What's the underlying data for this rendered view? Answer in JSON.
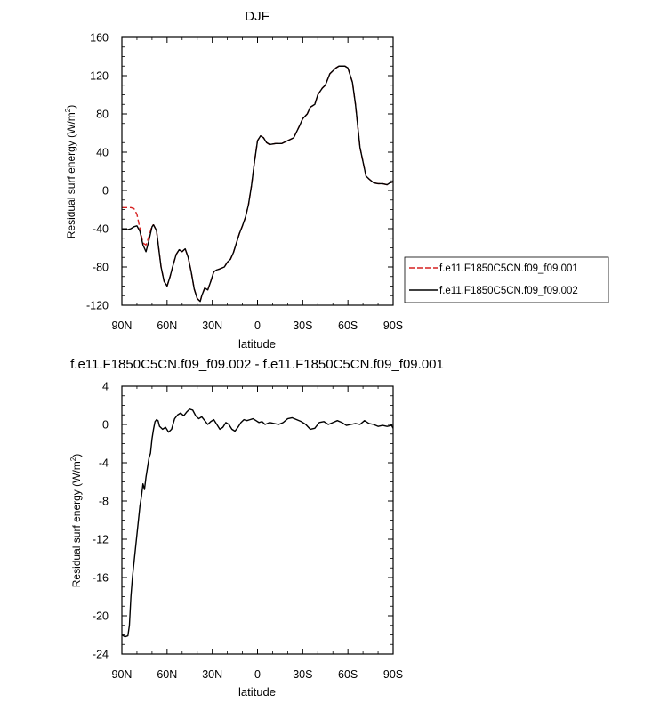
{
  "chart_data": [
    {
      "type": "line",
      "title": "DJF",
      "xlabel": "latitude",
      "ylabel_main": "Residual surf energy (W/m",
      "ylabel_sup": "2",
      "ylabel_close": ")",
      "xlim": [
        -90,
        90
      ],
      "ylim": [
        -120,
        160
      ],
      "x_ticks": [
        -90,
        -60,
        -30,
        0,
        30,
        60,
        90
      ],
      "x_tick_labels": [
        "90N",
        "60N",
        "30N",
        "0",
        "30S",
        "60S",
        "90S"
      ],
      "y_ticks": [
        -120,
        -80,
        -40,
        0,
        40,
        80,
        120,
        160
      ],
      "y_tick_labels": [
        "-120",
        "-80",
        "-40",
        "0",
        "40",
        "80",
        "120",
        "160"
      ],
      "legend_position": "right",
      "series": [
        {
          "name": "f.e11.F1850C5CN.f09_f09.001",
          "color": "#d62020",
          "dash": "dashed",
          "x": [
            -90,
            -86,
            -84,
            -82,
            -80,
            -78,
            -76,
            -74,
            -72,
            -70,
            -69,
            -67,
            -66,
            -64,
            -62,
            -60,
            -58,
            -56,
            -54,
            -52,
            -50,
            -48,
            -46,
            -44,
            -42,
            -40,
            -38,
            -37,
            -35,
            -33,
            -31,
            -29,
            -27,
            -25,
            -22,
            -20,
            -18,
            -16,
            -14,
            -12,
            -10,
            -8,
            -6,
            -4,
            -2,
            0,
            2,
            4,
            6,
            8,
            12,
            16,
            20,
            24,
            28,
            30,
            33,
            35,
            38,
            40,
            43,
            45,
            48,
            50,
            52,
            54,
            56,
            58,
            60,
            63,
            65,
            68,
            70,
            72,
            74,
            77,
            80,
            83,
            86,
            88,
            90
          ],
          "y": [
            -18,
            -18,
            -18,
            -19,
            -25,
            -40,
            -55,
            -57,
            -48,
            -37,
            -36,
            -42,
            -55,
            -80,
            -95,
            -100,
            -90,
            -78,
            -67,
            -62,
            -64,
            -61,
            -70,
            -85,
            -103,
            -113,
            -116,
            -110,
            -102,
            -104,
            -95,
            -85,
            -83,
            -82,
            -80,
            -75,
            -72,
            -65,
            -55,
            -45,
            -37,
            -28,
            -15,
            5,
            30,
            52,
            57,
            55,
            50,
            48,
            49,
            49,
            52,
            55,
            68,
            75,
            80,
            87,
            90,
            100,
            107,
            110,
            122,
            125,
            128,
            130,
            130,
            130,
            128,
            113,
            90,
            45,
            30,
            15,
            12,
            8,
            7,
            7,
            6,
            8,
            9
          ]
        },
        {
          "name": "f.e11.F1850C5CN.f09_f09.002",
          "color": "#000000",
          "dash": "solid",
          "x": [
            -90,
            -86,
            -84,
            -82,
            -80,
            -78,
            -76,
            -74,
            -72,
            -70,
            -69,
            -67,
            -66,
            -64,
            -62,
            -60,
            -58,
            -56,
            -54,
            -52,
            -50,
            -48,
            -46,
            -44,
            -42,
            -40,
            -38,
            -37,
            -35,
            -33,
            -31,
            -29,
            -27,
            -25,
            -22,
            -20,
            -18,
            -16,
            -14,
            -12,
            -10,
            -8,
            -6,
            -4,
            -2,
            0,
            2,
            4,
            6,
            8,
            12,
            16,
            20,
            24,
            28,
            30,
            33,
            35,
            38,
            40,
            43,
            45,
            48,
            50,
            52,
            54,
            56,
            58,
            60,
            63,
            65,
            68,
            70,
            72,
            74,
            77,
            80,
            83,
            86,
            88,
            90
          ],
          "y": [
            -41,
            -41,
            -40,
            -38,
            -37,
            -43,
            -57,
            -64,
            -52,
            -38,
            -36,
            -42,
            -55,
            -80,
            -95,
            -100,
            -90,
            -78,
            -67,
            -62,
            -64,
            -61,
            -70,
            -85,
            -103,
            -113,
            -116,
            -110,
            -102,
            -104,
            -95,
            -85,
            -83,
            -82,
            -80,
            -75,
            -72,
            -65,
            -55,
            -45,
            -37,
            -28,
            -15,
            5,
            30,
            52,
            57,
            55,
            50,
            48,
            49,
            49,
            52,
            55,
            68,
            75,
            80,
            87,
            90,
            100,
            107,
            110,
            122,
            125,
            128,
            130,
            130,
            130,
            128,
            113,
            90,
            45,
            30,
            15,
            12,
            8,
            7,
            7,
            6,
            8,
            9
          ]
        }
      ]
    },
    {
      "type": "line",
      "title": "f.e11.F1850C5CN.f09_f09.002 - f.e11.F1850C5CN.f09_f09.001",
      "xlabel": "latitude",
      "ylabel_main": "Residual surf energy (W/m",
      "ylabel_sup": "2",
      "ylabel_close": ")",
      "xlim": [
        -90,
        90
      ],
      "ylim": [
        -24,
        4
      ],
      "x_ticks": [
        -90,
        -60,
        -30,
        0,
        30,
        60,
        90
      ],
      "x_tick_labels": [
        "90N",
        "60N",
        "30N",
        "0",
        "30S",
        "60S",
        "90S"
      ],
      "y_ticks": [
        -24,
        -20,
        -16,
        -12,
        -8,
        -4,
        0,
        4
      ],
      "y_tick_labels": [
        "-24",
        "-20",
        "-16",
        "-12",
        "-8",
        "-4",
        "0",
        "4"
      ],
      "series": [
        {
          "color": "#000000",
          "dash": "solid",
          "x": [
            -90,
            -88,
            -86,
            -85,
            -84,
            -83,
            -82,
            -81,
            -80,
            -79,
            -78,
            -77,
            -76,
            -75,
            -74,
            -73,
            -72,
            -71,
            -70,
            -69,
            -68,
            -67,
            -66,
            -65,
            -63,
            -61,
            -59,
            -57,
            -55,
            -53,
            -51,
            -49,
            -47,
            -45,
            -43,
            -41,
            -39,
            -37,
            -35,
            -33,
            -31,
            -29,
            -27,
            -25,
            -23,
            -21,
            -19,
            -17,
            -15,
            -13,
            -11,
            -9,
            -7,
            -5,
            -3,
            -1,
            1,
            3,
            5,
            8,
            11,
            14,
            17,
            20,
            23,
            26,
            29,
            32,
            35,
            38,
            41,
            44,
            47,
            50,
            53,
            56,
            59,
            62,
            65,
            68,
            71,
            74,
            77,
            80,
            83,
            86,
            89,
            90
          ],
          "y": [
            -22.0,
            -22.2,
            -22.1,
            -21.0,
            -18.0,
            -16.0,
            -14.5,
            -13.0,
            -11.5,
            -10.0,
            -8.5,
            -7.5,
            -6.2,
            -6.8,
            -5.5,
            -4.5,
            -3.5,
            -3.0,
            -1.5,
            -0.5,
            0.3,
            0.5,
            0.4,
            -0.2,
            -0.5,
            -0.3,
            -0.8,
            -0.5,
            0.6,
            1.0,
            1.2,
            0.9,
            1.3,
            1.6,
            1.5,
            0.9,
            0.6,
            0.8,
            0.4,
            0.0,
            0.3,
            0.5,
            0.0,
            -0.5,
            -0.3,
            0.2,
            0.0,
            -0.5,
            -0.7,
            -0.3,
            0.2,
            0.5,
            0.4,
            0.5,
            0.6,
            0.4,
            0.2,
            0.3,
            0.0,
            0.2,
            0.1,
            0.0,
            0.2,
            0.6,
            0.7,
            0.5,
            0.3,
            0.0,
            -0.5,
            -0.4,
            0.2,
            0.3,
            0.0,
            0.2,
            0.4,
            0.2,
            -0.1,
            0.0,
            0.1,
            0.0,
            0.4,
            0.1,
            0.0,
            -0.2,
            -0.1,
            -0.2,
            -0.1,
            -0.4
          ]
        }
      ]
    }
  ]
}
